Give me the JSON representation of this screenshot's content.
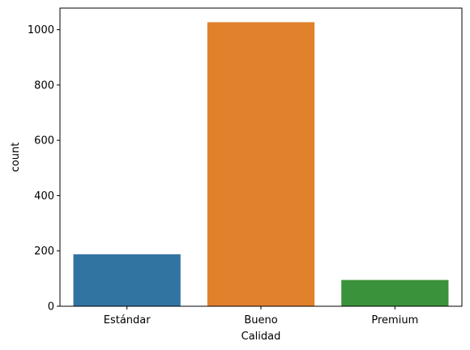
{
  "chart_data": {
    "type": "bar",
    "title": "",
    "xlabel": "Calidad",
    "ylabel": "count",
    "categories": [
      "Estándar",
      "Bueno",
      "Premium"
    ],
    "values": [
      188,
      1027,
      95
    ],
    "colors": [
      "#3274a1",
      "#e1812c",
      "#3a923a"
    ],
    "ylim": [
      0,
      1078
    ],
    "yticks": [
      0,
      200,
      400,
      600,
      800,
      1000
    ],
    "grid": false
  }
}
